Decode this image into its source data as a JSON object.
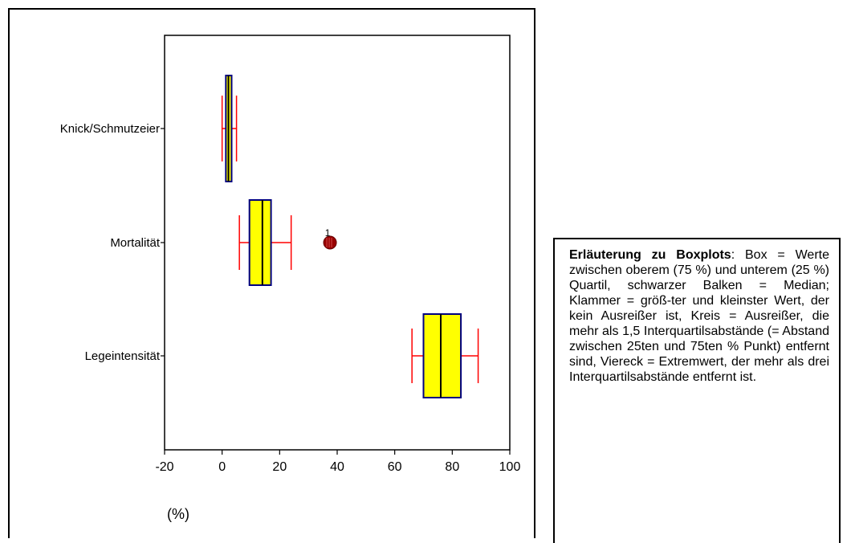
{
  "chart_data": {
    "type": "boxplot",
    "orientation": "horizontal",
    "xlabel": "(%)",
    "xlim": [
      -20,
      100
    ],
    "xticks": [
      -20,
      0,
      20,
      40,
      60,
      80,
      100
    ],
    "categories": [
      "Knick/Schmutzeier",
      "Mortalität",
      "Legeintensität"
    ],
    "boxes": [
      {
        "category": "Knick/Schmutzeier",
        "whisker_low": 0,
        "q1": 1.3,
        "median": 2.2,
        "q3": 3.3,
        "whisker_high": 5,
        "outliers": []
      },
      {
        "category": "Mortalität",
        "whisker_low": 6,
        "q1": 9.5,
        "median": 14,
        "q3": 17,
        "whisker_high": 24,
        "outliers": [
          {
            "value": 37.5,
            "label": "1"
          }
        ]
      },
      {
        "category": "Legeintensität",
        "whisker_low": 66,
        "q1": 70,
        "median": 76,
        "q3": 83,
        "whisker_high": 89,
        "outliers": []
      }
    ],
    "colors": {
      "box_fill": "#ffff00",
      "box_stroke": "#000080",
      "median": "#000000",
      "whisker": "#ff0000",
      "outlier": "#990000"
    }
  },
  "note": {
    "title": "Erläuterung zu Boxplots",
    "text": ": Box = Werte zwischen oberem (75 %) und unterem (25 %) Quartil, schwarzer Balken = Median; Klammer = größ-ter und kleinster Wert, der kein Ausreißer ist, Kreis = Ausreißer, die mehr als 1,5 Interquartilsabstände (= Abstand zwischen 25ten und 75ten % Punkt) entfernt sind, Viereck = Extremwert, der mehr als drei Interquartilsabstände entfernt ist."
  }
}
